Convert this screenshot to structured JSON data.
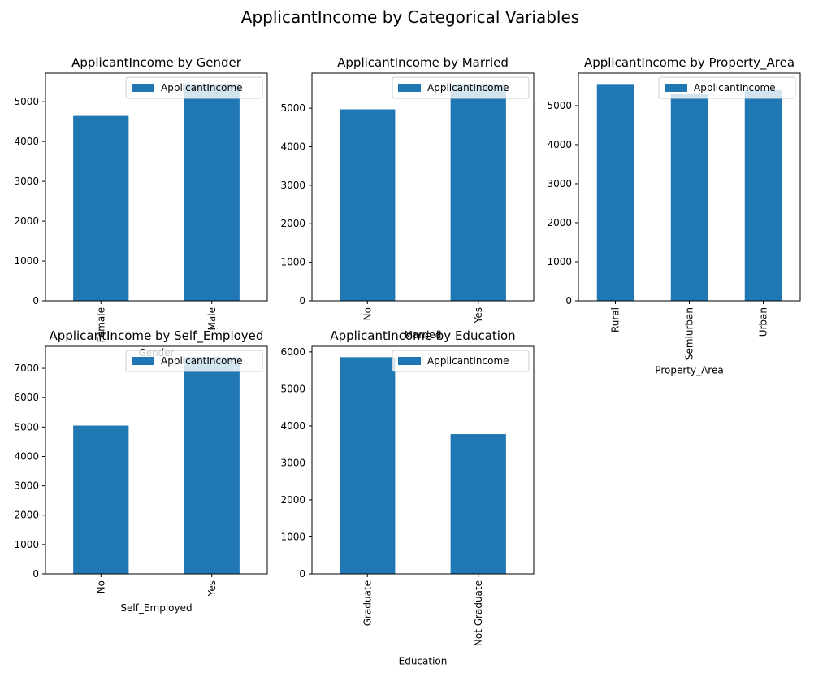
{
  "figure": {
    "title": "ApplicantIncome by Categorical Variables"
  },
  "colors": {
    "bar": "#1f77b4",
    "axes": "#000000",
    "legend_border": "#cccccc",
    "background": "#ffffff"
  },
  "chart_data": [
    {
      "type": "bar",
      "title": "ApplicantIncome by Gender",
      "xlabel": "Gender",
      "ylabel": "",
      "categories": [
        "Female",
        "Male"
      ],
      "series": [
        {
          "name": "ApplicantIncome",
          "values": [
            4644,
            5446
          ]
        }
      ],
      "ylim": [
        0,
        5718
      ],
      "yticks": [
        0,
        1000,
        2000,
        3000,
        4000,
        5000
      ],
      "legend": "upper right",
      "grid": false
    },
    {
      "type": "bar",
      "title": "ApplicantIncome by Married",
      "xlabel": "Married",
      "ylabel": "",
      "categories": [
        "No",
        "Yes"
      ],
      "series": [
        {
          "name": "ApplicantIncome",
          "values": [
            4971,
            5629
          ]
        }
      ],
      "ylim": [
        0,
        5910
      ],
      "yticks": [
        0,
        1000,
        2000,
        3000,
        4000,
        5000
      ],
      "legend": "upper right",
      "grid": false
    },
    {
      "type": "bar",
      "title": "ApplicantIncome by Property_Area",
      "xlabel": "Property_Area",
      "ylabel": "",
      "categories": [
        "Rural",
        "Semiurban",
        "Urban"
      ],
      "series": [
        {
          "name": "ApplicantIncome",
          "values": [
            5554,
            5292,
            5399
          ]
        }
      ],
      "ylim": [
        0,
        5832
      ],
      "yticks": [
        0,
        1000,
        2000,
        3000,
        4000,
        5000
      ],
      "legend": "upper right",
      "grid": false
    },
    {
      "type": "bar",
      "title": "ApplicantIncome by Self_Employed",
      "xlabel": "Self_Employed",
      "ylabel": "",
      "categories": [
        "No",
        "Yes"
      ],
      "series": [
        {
          "name": "ApplicantIncome",
          "values": [
            5050,
            7380
          ]
        }
      ],
      "ylim": [
        0,
        7749
      ],
      "yticks": [
        0,
        1000,
        2000,
        3000,
        4000,
        5000,
        6000,
        7000
      ],
      "legend": "upper right",
      "grid": false
    },
    {
      "type": "bar",
      "title": "ApplicantIncome by Education",
      "xlabel": "Education",
      "ylabel": "",
      "categories": [
        "Graduate",
        "Not Graduate"
      ],
      "series": [
        {
          "name": "ApplicantIncome",
          "values": [
            5858,
            3777
          ]
        }
      ],
      "ylim": [
        0,
        6151
      ],
      "yticks": [
        0,
        1000,
        2000,
        3000,
        4000,
        5000,
        6000
      ],
      "legend": "upper right",
      "grid": false
    }
  ]
}
